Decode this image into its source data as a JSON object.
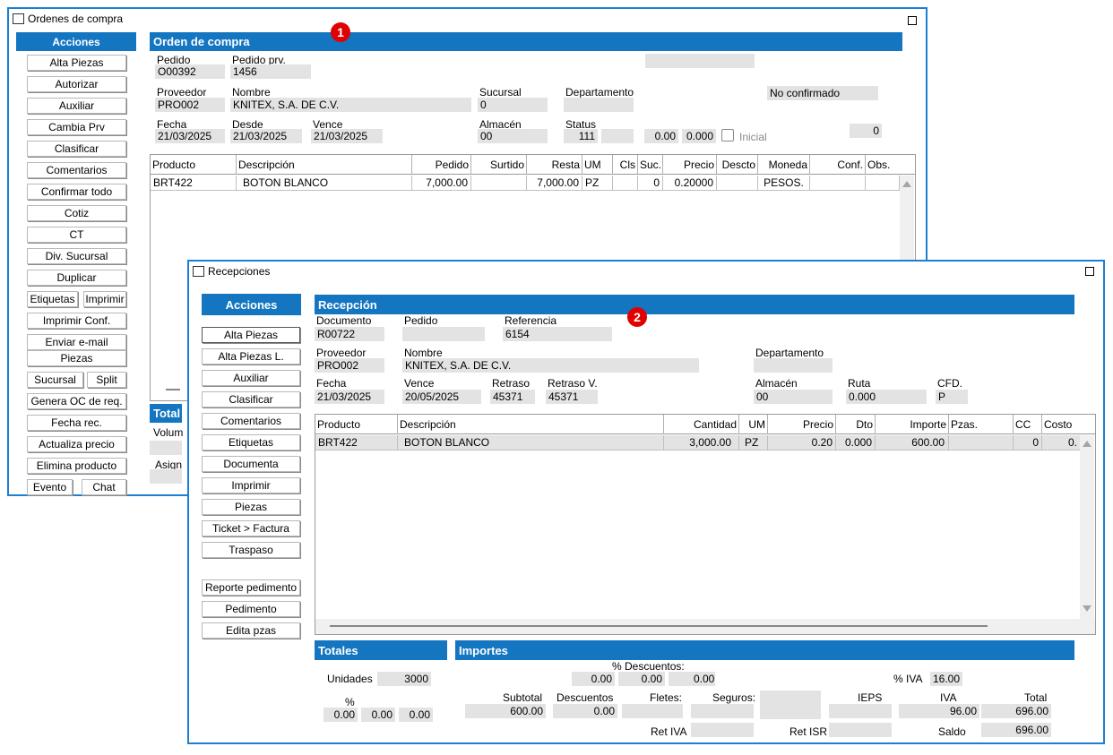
{
  "oc": {
    "title": "Ordenes de compra",
    "sidebar_title": "Acciones",
    "buttons": [
      "Alta Piezas",
      "Autorizar",
      "Auxiliar",
      "Cambia Prv",
      "Clasificar",
      "Comentarios",
      "Confirmar todo",
      "Cotiz",
      "CT",
      "Div. Sucursal",
      "Duplicar",
      "Etiquetas",
      "Imprimir",
      "Imprimir Conf.",
      "Enviar e-mail",
      "Piezas",
      "Sucursal",
      "Split",
      "Genera OC de req.",
      "Fecha rec.",
      "Actualiza precio",
      "Elimina producto",
      "Evento",
      "Chat"
    ],
    "section_title": "Orden de compra",
    "badge": "1",
    "fields": {
      "pedido_label": "Pedido",
      "pedido": "O00392",
      "pedido_prv_label": "Pedido prv.",
      "pedido_prv": "1456",
      "proveedor_label": "Proveedor",
      "proveedor": "PRO002",
      "nombre_label": "Nombre",
      "nombre": "KNITEX, S.A. DE C.V.",
      "sucursal_label": "Sucursal",
      "sucursal": "0",
      "departamento_label": "Departamento",
      "estado": "No confirmado",
      "fecha_label": "Fecha",
      "fecha": "21/03/2025",
      "desde_label": "Desde",
      "desde": "21/03/2025",
      "vence_label": "Vence",
      "vence": "21/03/2025",
      "almacen_label": "Almacén",
      "almacen": "00",
      "status_label": "Status",
      "status": "111",
      "val1": "0.00",
      "val2": "0.000",
      "inicial_label": "Inicial",
      "contador": "0"
    },
    "grid_headers": [
      "Producto",
      "Descripción",
      "Pedido",
      "Surtido",
      "Resta",
      "UM",
      "Cls",
      "Suc.",
      "Precio",
      "Descto",
      "Moneda",
      "Conf.",
      "Obs."
    ],
    "rows": [
      {
        "producto": "BRT422",
        "descripcion": "BOTON BLANCO",
        "pedido": "7,000.00",
        "surtido": "",
        "resta": "7,000.00",
        "um": "PZ",
        "cls": "",
        "suc": "0",
        "precio": "0.20000",
        "descto": "",
        "moneda": "PESOS.",
        "conf": "",
        "obs": ""
      }
    ],
    "totales_partial": "Total",
    "volumen_partial": "Volum",
    "asign_partial": "Asign"
  },
  "rec": {
    "title": "Recepciones",
    "sidebar_title": "Acciones",
    "buttons": [
      "Alta Piezas",
      "Alta Piezas L.",
      "Auxiliar",
      "Clasificar",
      "Comentarios",
      "Etiquetas",
      "Documenta",
      "Imprimir",
      "Piezas",
      "Ticket > Factura",
      "Traspaso"
    ],
    "buttons2": [
      "Reporte pedimento",
      "Pedimento",
      "Edita pzas"
    ],
    "section_title": "Recepción",
    "badge": "2",
    "fields": {
      "documento_label": "Documento",
      "documento": "R00722",
      "pedido_label": "Pedido",
      "pedido": "",
      "referencia_label": "Referencia",
      "referencia": "6154",
      "proveedor_label": "Proveedor",
      "proveedor": "PRO002",
      "nombre_label": "Nombre",
      "nombre": "KNITEX, S.A. DE C.V.",
      "departamento_label": "Departamento",
      "fecha_label": "Fecha",
      "fecha": "21/03/2025",
      "vence_label": "Vence",
      "vence": "20/05/2025",
      "retraso_label": "Retraso",
      "retraso": "45371",
      "retraso_v_label": "Retraso V.",
      "retraso_v": "45371",
      "almacen_label": "Almacén",
      "almacen": "00",
      "ruta_label": "Ruta",
      "ruta": "0.000",
      "cfd_label": "CFD.",
      "cfd": "P"
    },
    "grid_headers": [
      "Producto",
      "Descripción",
      "Cantidad",
      "UM",
      "Precio",
      "Dto",
      "Importe",
      "Pzas.",
      "CC",
      "Costo"
    ],
    "rows": [
      {
        "producto": "BRT422",
        "descripcion": "BOTON BLANCO",
        "cantidad": "3,000.00",
        "um": "PZ",
        "precio": "0.20",
        "dto": "0.000",
        "importe": "600.00",
        "pzas": "",
        "cc": "0",
        "costo": "0."
      }
    ],
    "totales": {
      "title": "Totales",
      "unidades_label": "Unidades",
      "unidades": "3000",
      "pct_label": "%",
      "pct": [
        "0.00",
        "0.00",
        "0.00"
      ]
    },
    "importes": {
      "title": "Importes",
      "desc_pct_label": "% Descuentos:",
      "desc_pct": [
        "0.00",
        "0.00",
        "0.00"
      ],
      "iva_pct_label": "% IVA",
      "iva_pct": "16.00",
      "subtotal_label": "Subtotal",
      "subtotal": "600.00",
      "descuentos_label": "Descuentos",
      "descuentos": "0.00",
      "fletes_label": "Fletes:",
      "fletes": "",
      "seguros_label": "Seguros:",
      "seguros": "",
      "ieps_label": "IEPS",
      "ieps": "",
      "iva_label": "IVA",
      "iva": "96.00",
      "total_label": "Total",
      "total": "696.00",
      "ret_iva_label": "Ret IVA",
      "ret_iva": "",
      "ret_isr_label": "Ret ISR",
      "ret_isr": "",
      "saldo_label": "Saldo",
      "saldo": "696.00"
    }
  }
}
